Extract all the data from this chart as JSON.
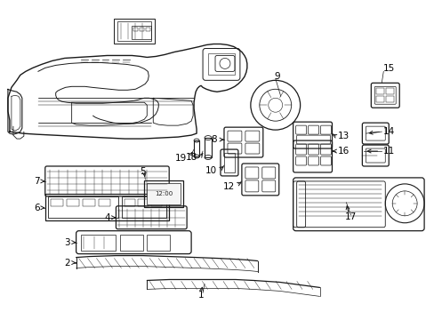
{
  "background_color": "#ffffff",
  "figsize": [
    4.89,
    3.6
  ],
  "dpi": 100,
  "lc": "#1a1a1a",
  "label_positions": {
    "1": [
      232,
      342,
      245,
      332
    ],
    "2": [
      105,
      306,
      130,
      298
    ],
    "3": [
      63,
      270,
      105,
      263
    ],
    "4": [
      108,
      242,
      140,
      237
    ],
    "5": [
      165,
      213,
      165,
      203
    ],
    "6": [
      60,
      228,
      95,
      228
    ],
    "7": [
      55,
      193,
      85,
      193
    ],
    "8": [
      243,
      165,
      258,
      157
    ],
    "9": [
      320,
      95,
      320,
      109
    ],
    "10": [
      234,
      178,
      252,
      169
    ],
    "11": [
      428,
      173,
      414,
      167
    ],
    "12": [
      263,
      202,
      270,
      190
    ],
    "13": [
      374,
      160,
      360,
      153
    ],
    "14": [
      429,
      142,
      415,
      140
    ],
    "15": [
      435,
      78,
      432,
      92
    ],
    "16": [
      372,
      173,
      358,
      167
    ],
    "17": [
      390,
      240,
      380,
      228
    ],
    "18": [
      222,
      165,
      228,
      157
    ],
    "19": [
      212,
      172,
      210,
      162
    ]
  }
}
